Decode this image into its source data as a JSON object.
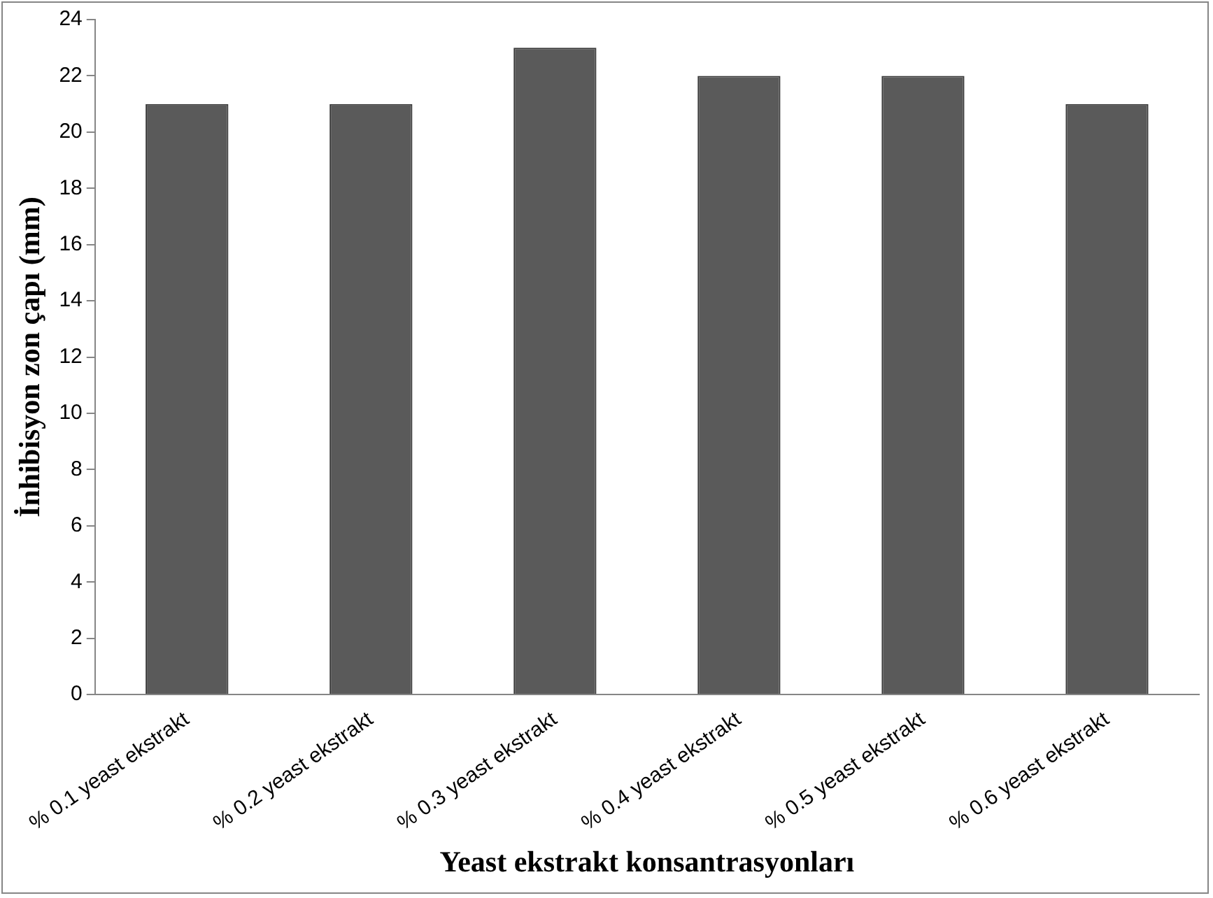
{
  "chart_data": {
    "type": "bar",
    "xlabel": "Yeast ekstrakt konsantrasyonları",
    "ylabel": "İnhibisyon zon çapı (mm)",
    "categories": [
      "% 0.1 yeast ekstrakt",
      "% 0.2 yeast ekstrakt",
      "% 0.3 yeast ekstrakt",
      "% 0.4 yeast ekstrakt",
      "% 0.5 yeast ekstrakt",
      "% 0.6 yeast ekstrakt"
    ],
    "values": [
      21,
      21,
      23,
      22,
      22,
      21
    ],
    "color": "#5a5a5a",
    "ylim": [
      0,
      24
    ],
    "yticks": [
      0,
      2,
      4,
      6,
      8,
      10,
      12,
      14,
      16,
      18,
      20,
      22,
      24
    ],
    "grid": false,
    "legend": false
  }
}
